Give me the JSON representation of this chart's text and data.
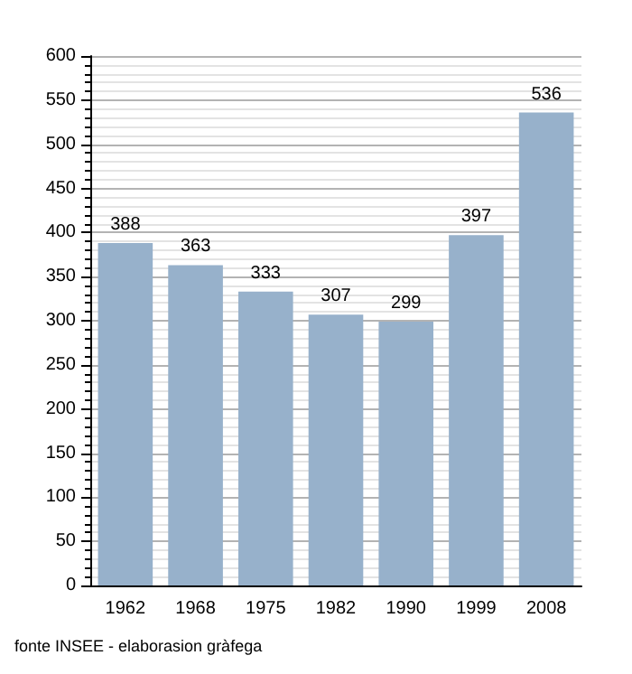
{
  "chart_data": {
    "type": "bar",
    "categories": [
      "1962",
      "1968",
      "1975",
      "1982",
      "1990",
      "1999",
      "2008"
    ],
    "values": [
      388,
      363,
      333,
      307,
      299,
      397,
      536
    ],
    "color": "#97b1cb",
    "ylim": [
      0,
      600
    ],
    "yticks": [
      0,
      50,
      100,
      150,
      200,
      250,
      300,
      350,
      400,
      450,
      500,
      550,
      600
    ],
    "grid": "y",
    "data_labels": true,
    "annotations": [
      "fonte INSEE - elaborasion gràfega"
    ]
  }
}
